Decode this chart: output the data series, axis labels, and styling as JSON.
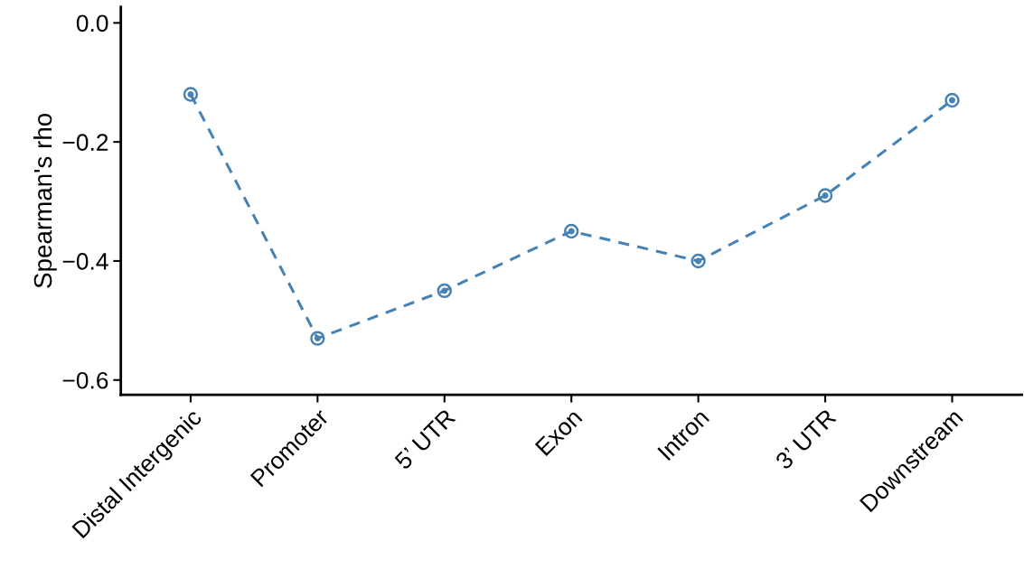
{
  "chart_data": {
    "type": "line",
    "ylabel": "Spearman's rho",
    "categories": [
      "Distal Intergenic",
      "Promoter",
      "5’ UTR",
      "Exon",
      "Intron",
      "3’ UTR",
      "Downstream"
    ],
    "series": [
      {
        "color": "#4682b4",
        "values": [
          -0.12,
          -0.53,
          -0.45,
          -0.35,
          -0.4,
          -0.29,
          -0.13
        ]
      }
    ],
    "ylim": [
      -0.625,
      0.027
    ],
    "yticks": [
      {
        "value": 0,
        "label": "0.0"
      },
      {
        "value": -0.2,
        "label": "−0.2"
      },
      {
        "value": -0.4,
        "label": "−0.4"
      },
      {
        "value": -0.6,
        "label": "−0.6"
      }
    ],
    "grid": false,
    "marker": "circle",
    "line_style": "dashed"
  }
}
